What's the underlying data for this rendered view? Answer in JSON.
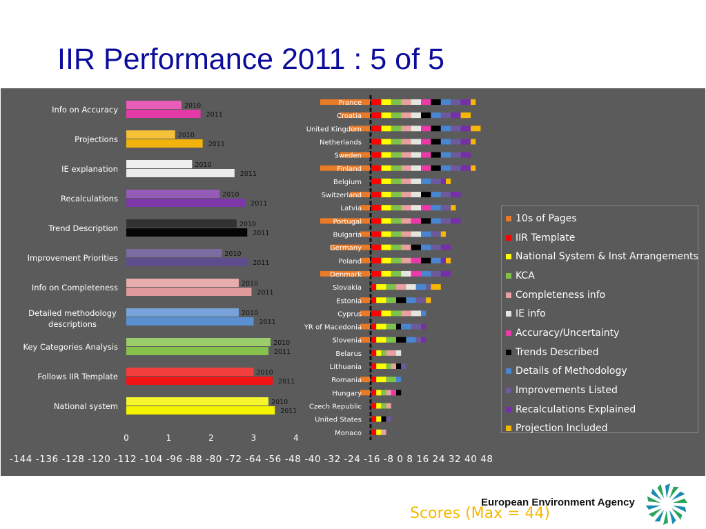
{
  "slide": {
    "title": "IIR Performance 2011 : 5 of 5",
    "footer_agency": "European Environment Agency"
  },
  "colors": {
    "panel_bg": "#5b5b5b",
    "title": "#0b0b9c",
    "scores_label": "#f5b800"
  },
  "chart_data": [
    {
      "type": "bar",
      "orientation": "horizontal",
      "title": "",
      "categories": [
        "Info on Accuracy",
        "Projections",
        "IE explanation",
        "Recalculations",
        "Trend Description",
        "Improvement Priorities",
        "Info on Completeness",
        "Detailed methodology descriptions",
        "Key Categories Analysis",
        "Follows IIR Template",
        "National system"
      ],
      "series": [
        {
          "name": "2010",
          "values": [
            1.3,
            1.15,
            1.55,
            2.2,
            2.6,
            2.25,
            2.65,
            2.65,
            3.4,
            3.0,
            3.35
          ]
        },
        {
          "name": "2011",
          "values": [
            1.75,
            1.8,
            2.55,
            2.8,
            2.85,
            2.85,
            2.95,
            3.0,
            3.35,
            3.45,
            3.5
          ]
        }
      ],
      "bar_colors": [
        "#e33aa8",
        "#f2b30c",
        "#ececec",
        "#7c37a8",
        "#050505",
        "#5e4d8e",
        "#e09a9c",
        "#5a8fd2",
        "#86c24b",
        "#f01414",
        "#f4f400"
      ],
      "series_label_color": "#111111",
      "xticks": [
        0,
        1,
        2,
        3,
        4
      ],
      "xlim": [
        0,
        4
      ],
      "grid": false,
      "legend": "none"
    },
    {
      "type": "bar",
      "orientation": "horizontal",
      "stacked": true,
      "title": "Scores (Max = 44)",
      "x_tick_labels": "-144 -136 -128 -120 -112 -104 -96 -88 -80 -72 -64 -56 -48 -40 -32 -24 -16 -8 0 8 16 24 32 40 48",
      "xticks": [
        -144,
        -136,
        -128,
        -120,
        -112,
        -104,
        -96,
        -88,
        -80,
        -72,
        -64,
        -56,
        -48,
        -40,
        -32,
        -24,
        -16,
        -8,
        0,
        8,
        16,
        24,
        32,
        40,
        48
      ],
      "xlim": [
        -144,
        52
      ],
      "categories": [
        "France",
        "Croatia",
        "United Kingdom",
        "Netherlands",
        "Sweden",
        "Finland",
        "Belgium",
        "Switzerland",
        "Latvia",
        "Portugal",
        "Bulgaria",
        "Germany",
        "Poland",
        "Denmark",
        "Slovakia",
        "Estonia",
        "Cyprus",
        "YR of Macedonia",
        "Slovenia",
        "Belarus",
        "Lithuania",
        "Romania",
        "Hungary",
        "Czech Republic",
        "United States",
        "Monaco"
      ],
      "series": [
        {
          "name": "10s of Pages",
          "color": "#e87a28",
          "values": [
            -20,
            -12,
            -8,
            0,
            -12,
            -20,
            0,
            -8,
            -4,
            -20,
            -4,
            -16,
            -4,
            -20,
            0,
            -4,
            -4,
            -4,
            -4,
            0,
            0,
            -4,
            -4,
            0,
            0,
            0
          ]
        },
        {
          "name": "IIR Template",
          "color": "#ff0000",
          "values": [
            4,
            4,
            4,
            4,
            4,
            4,
            4,
            4,
            4,
            4,
            4,
            4,
            4,
            4,
            2,
            2,
            4,
            2,
            2,
            2,
            2,
            2,
            2,
            2,
            2,
            2
          ]
        },
        {
          "name": "National System & Inst Arrangements",
          "color": "#ffff00",
          "values": [
            4,
            4,
            4,
            4,
            4,
            4,
            4,
            4,
            4,
            4,
            4,
            4,
            4,
            4,
            4,
            4,
            4,
            4,
            4,
            2,
            4,
            4,
            2,
            2,
            2,
            2
          ]
        },
        {
          "name": "KCA",
          "color": "#7fc24a",
          "values": [
            4,
            4,
            4,
            4,
            4,
            4,
            4,
            4,
            4,
            4,
            4,
            4,
            4,
            4,
            4,
            4,
            4,
            4,
            4,
            2,
            2,
            4,
            2,
            2,
            0,
            0
          ]
        },
        {
          "name": "Completeness info",
          "color": "#e8a0a0",
          "values": [
            4,
            4,
            4,
            4,
            4,
            4,
            4,
            4,
            4,
            4,
            4,
            4,
            4,
            0,
            4,
            0,
            4,
            0,
            0,
            4,
            2,
            0,
            2,
            2,
            0,
            2
          ]
        },
        {
          "name": "IE info",
          "color": "#e6e6e0",
          "values": [
            4,
            4,
            4,
            4,
            4,
            4,
            4,
            4,
            4,
            0,
            4,
            0,
            0,
            4,
            4,
            0,
            4,
            0,
            0,
            2,
            0,
            0,
            0,
            0,
            0,
            0
          ]
        },
        {
          "name": "Accuracy/Uncertainty",
          "color": "#e93aa8",
          "values": [
            4,
            0,
            4,
            4,
            4,
            4,
            0,
            0,
            4,
            4,
            0,
            0,
            4,
            4,
            0,
            0,
            0,
            0,
            0,
            0,
            0,
            0,
            2,
            0,
            0,
            0
          ]
        },
        {
          "name": "Trends Described",
          "color": "#000000",
          "values": [
            4,
            4,
            4,
            4,
            4,
            4,
            0,
            4,
            0,
            4,
            0,
            4,
            4,
            0,
            0,
            4,
            0,
            2,
            4,
            0,
            2,
            0,
            2,
            0,
            2,
            0
          ]
        },
        {
          "name": "Details of Methodology",
          "color": "#4a86d0",
          "values": [
            4,
            4,
            4,
            4,
            4,
            4,
            4,
            4,
            4,
            4,
            4,
            4,
            4,
            4,
            4,
            4,
            2,
            4,
            4,
            0,
            0,
            2,
            0,
            0,
            0,
            0
          ]
        },
        {
          "name": "Improvements Listed",
          "color": "#6c5a9c",
          "values": [
            4,
            4,
            4,
            4,
            4,
            4,
            4,
            4,
            4,
            4,
            4,
            4,
            0,
            4,
            2,
            4,
            0,
            4,
            2,
            0,
            2,
            0,
            0,
            0,
            2,
            0
          ]
        },
        {
          "name": "Recalculations Explained",
          "color": "#7530a8",
          "values": [
            4,
            4,
            4,
            4,
            4,
            4,
            2,
            4,
            0,
            4,
            0,
            4,
            2,
            4,
            0,
            0,
            0,
            2,
            2,
            0,
            0,
            0,
            0,
            0,
            0,
            0
          ]
        },
        {
          "name": "Projection Included",
          "color": "#f5b800",
          "values": [
            2,
            4,
            4,
            2,
            0,
            2,
            2,
            0,
            2,
            0,
            2,
            0,
            2,
            0,
            4,
            2,
            0,
            0,
            0,
            0,
            0,
            0,
            0,
            0,
            0,
            0
          ]
        }
      ],
      "grid": false,
      "legend": "right"
    }
  ]
}
